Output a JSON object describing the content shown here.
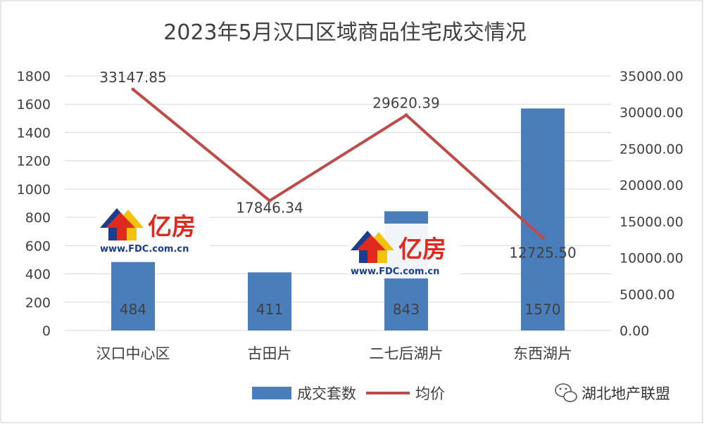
{
  "chart_data": {
    "type": "bar+line",
    "title": "2023年5月汉口区域商品住宅成交情况",
    "categories": [
      "汉口中心区",
      "古田片",
      "二七后湖片",
      "东西湖片"
    ],
    "series": [
      {
        "name": "成交套数",
        "type": "bar",
        "axis": "left",
        "values": [
          484,
          411,
          843,
          1570
        ],
        "labels": [
          "484",
          "411",
          "843",
          "1570"
        ],
        "color": "#4A7EBB"
      },
      {
        "name": "均价",
        "type": "line",
        "axis": "right",
        "values": [
          33147.85,
          17846.34,
          29620.39,
          12725.5
        ],
        "labels": [
          "33147.85",
          "17846.34",
          "29620.39",
          "12725.50"
        ],
        "color": "#BE4B48"
      }
    ],
    "y_left": {
      "ylim": [
        0,
        1800
      ],
      "ticks": [
        "0",
        "200",
        "400",
        "600",
        "800",
        "1000",
        "1200",
        "1400",
        "1600",
        "1800"
      ]
    },
    "y_right": {
      "ylim": [
        0,
        35000
      ],
      "ticks": [
        "0.00",
        "5000.00",
        "10000.00",
        "15000.00",
        "20000.00",
        "25000.00",
        "30000.00",
        "35000.00"
      ]
    },
    "grid": true,
    "legend": "bottom"
  },
  "watermark": {
    "logo_text": "亿房",
    "logo_url": "www.FDC.com.cn"
  },
  "source_mark": {
    "text": "湖北地产联盟",
    "icon": "wechat-icon"
  },
  "colors": {
    "bar": "#4A7EBB",
    "line": "#BE4B48",
    "grid": "#D9D9D9",
    "text": "#404040",
    "logo_red": "#E02A20",
    "logo_blue": "#1A3E8C",
    "logo_yellow": "#F4C20D"
  }
}
